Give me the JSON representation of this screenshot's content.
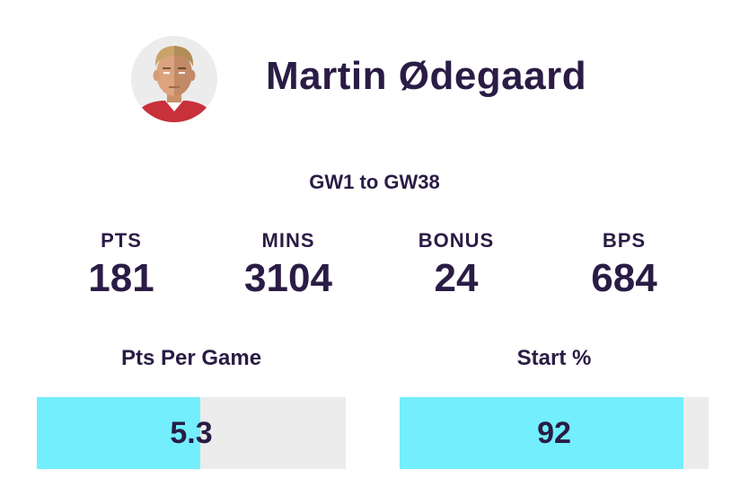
{
  "player": {
    "name": "Martin Ødegaard",
    "avatar_icon": "player-avatar-icon"
  },
  "range_label": "GW1 to GW38",
  "stats": [
    {
      "label": "PTS",
      "value": "181"
    },
    {
      "label": "MINS",
      "value": "3104"
    },
    {
      "label": "BONUS",
      "value": "24"
    },
    {
      "label": "BPS",
      "value": "684"
    }
  ],
  "bars": [
    {
      "title": "Pts Per Game",
      "value": "5.3",
      "fill_fraction": 0.53
    },
    {
      "title": "Start %",
      "value": "92",
      "fill_fraction": 0.92
    }
  ],
  "colors": {
    "text": "#2a1c45",
    "bar_fill": "#73eefc",
    "bar_track": "#ececec"
  }
}
